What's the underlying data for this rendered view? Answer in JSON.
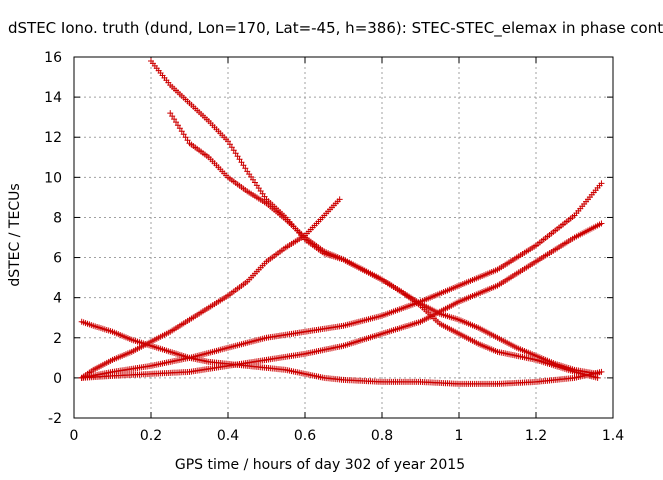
{
  "chart_data": {
    "type": "scatter",
    "title": "dSTEC Iono. truth (dund, Lon=170, Lat=-45, h=386): STEC-STEC_elemax in phase cont",
    "xlabel": "GPS time / hours of day 302 of year 2015",
    "ylabel": "dSTEC  / TECUs",
    "xlim": [
      0,
      1.4
    ],
    "ylim": [
      -2,
      16
    ],
    "xticks": [
      "0",
      "0.2",
      "0.4",
      "0.6",
      "0.8",
      "1",
      "1.2",
      "1.4"
    ],
    "yticks": [
      "-2",
      "0",
      "2",
      "4",
      "6",
      "8",
      "10",
      "12",
      "14",
      "16"
    ],
    "grid": true,
    "marker": "+",
    "color": "#cc0000",
    "series": [
      {
        "points": [
          [
            0.2,
            15.8
          ],
          [
            0.25,
            14.6
          ],
          [
            0.3,
            13.7
          ],
          [
            0.35,
            12.8
          ],
          [
            0.4,
            11.8
          ],
          [
            0.45,
            10.3
          ],
          [
            0.5,
            8.9
          ],
          [
            0.55,
            8.0
          ],
          [
            0.6,
            6.9
          ],
          [
            0.65,
            6.2
          ],
          [
            0.7,
            5.9
          ],
          [
            0.75,
            5.4
          ],
          [
            0.8,
            4.9
          ],
          [
            0.85,
            4.3
          ],
          [
            0.9,
            3.6
          ],
          [
            0.95,
            2.7
          ],
          [
            1.0,
            2.2
          ],
          [
            1.05,
            1.7
          ],
          [
            1.1,
            1.3
          ],
          [
            1.15,
            1.1
          ],
          [
            1.2,
            0.9
          ],
          [
            1.25,
            0.6
          ],
          [
            1.3,
            0.3
          ],
          [
            1.36,
            0.0
          ]
        ]
      },
      {
        "points": [
          [
            0.25,
            13.2
          ],
          [
            0.3,
            11.7
          ],
          [
            0.35,
            11.0
          ],
          [
            0.4,
            10.0
          ],
          [
            0.45,
            9.3
          ],
          [
            0.5,
            8.7
          ],
          [
            0.55,
            7.9
          ],
          [
            0.6,
            7.0
          ],
          [
            0.65,
            6.3
          ],
          [
            0.7,
            5.9
          ],
          [
            0.75,
            5.4
          ],
          [
            0.8,
            4.9
          ],
          [
            0.85,
            4.3
          ],
          [
            0.9,
            3.7
          ],
          [
            0.95,
            3.2
          ],
          [
            1.0,
            2.9
          ],
          [
            1.05,
            2.5
          ],
          [
            1.1,
            2.0
          ],
          [
            1.15,
            1.5
          ],
          [
            1.2,
            1.1
          ],
          [
            1.25,
            0.7
          ],
          [
            1.3,
            0.4
          ],
          [
            1.36,
            0.2
          ]
        ]
      },
      {
        "points": [
          [
            0.02,
            0.0
          ],
          [
            0.05,
            0.4
          ],
          [
            0.1,
            0.9
          ],
          [
            0.15,
            1.3
          ],
          [
            0.2,
            1.8
          ],
          [
            0.25,
            2.3
          ],
          [
            0.3,
            2.9
          ],
          [
            0.35,
            3.5
          ],
          [
            0.4,
            4.1
          ],
          [
            0.45,
            4.8
          ],
          [
            0.5,
            5.8
          ],
          [
            0.55,
            6.5
          ],
          [
            0.6,
            7.1
          ],
          [
            0.65,
            8.1
          ],
          [
            0.69,
            8.9
          ]
        ]
      },
      {
        "points": [
          [
            0.02,
            2.8
          ],
          [
            0.05,
            2.6
          ],
          [
            0.1,
            2.3
          ],
          [
            0.15,
            1.9
          ],
          [
            0.2,
            1.6
          ],
          [
            0.25,
            1.3
          ],
          [
            0.3,
            1.0
          ],
          [
            0.35,
            0.8
          ],
          [
            0.4,
            0.7
          ],
          [
            0.45,
            0.6
          ],
          [
            0.5,
            0.5
          ],
          [
            0.55,
            0.4
          ],
          [
            0.6,
            0.2
          ],
          [
            0.65,
            0.0
          ],
          [
            0.7,
            -0.1
          ],
          [
            0.8,
            -0.2
          ],
          [
            0.9,
            -0.2
          ],
          [
            1.0,
            -0.3
          ],
          [
            1.1,
            -0.3
          ],
          [
            1.2,
            -0.2
          ],
          [
            1.3,
            0.0
          ],
          [
            1.37,
            0.3
          ]
        ]
      },
      {
        "points": [
          [
            0.02,
            0.0
          ],
          [
            0.1,
            0.3
          ],
          [
            0.2,
            0.6
          ],
          [
            0.3,
            1.0
          ],
          [
            0.4,
            1.5
          ],
          [
            0.5,
            2.0
          ],
          [
            0.6,
            2.3
          ],
          [
            0.7,
            2.6
          ],
          [
            0.8,
            3.1
          ],
          [
            0.9,
            3.8
          ],
          [
            1.0,
            4.6
          ],
          [
            1.1,
            5.4
          ],
          [
            1.2,
            6.6
          ],
          [
            1.3,
            8.1
          ],
          [
            1.37,
            9.7
          ]
        ]
      },
      {
        "points": [
          [
            0.02,
            0.0
          ],
          [
            0.1,
            0.1
          ],
          [
            0.2,
            0.2
          ],
          [
            0.3,
            0.3
          ],
          [
            0.4,
            0.6
          ],
          [
            0.5,
            0.9
          ],
          [
            0.6,
            1.2
          ],
          [
            0.7,
            1.6
          ],
          [
            0.8,
            2.2
          ],
          [
            0.9,
            2.8
          ],
          [
            1.0,
            3.8
          ],
          [
            1.1,
            4.6
          ],
          [
            1.2,
            5.8
          ],
          [
            1.3,
            7.0
          ],
          [
            1.37,
            7.7
          ]
        ]
      }
    ]
  }
}
